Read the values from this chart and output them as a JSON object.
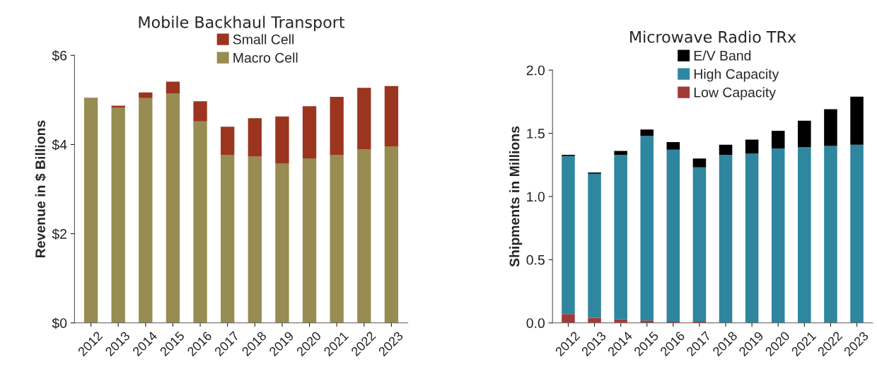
{
  "chart_data": [
    {
      "type": "bar",
      "title": "Mobile Backhaul Transport",
      "ylabel": "Revenue in $ Billions",
      "stacked": true,
      "legend": "top",
      "grid": false,
      "categories": [
        "2012",
        "2013",
        "2014",
        "2015",
        "2016",
        "2017",
        "2018",
        "2019",
        "2020",
        "2021",
        "2022",
        "2023"
      ],
      "series": [
        {
          "name": "Macro Cell",
          "color": "#978c52",
          "values": [
            5.04,
            4.83,
            5.04,
            5.14,
            4.52,
            3.76,
            3.73,
            3.58,
            3.69,
            3.76,
            3.89,
            3.96
          ]
        },
        {
          "name": "Small Cell",
          "color": "#9b3520",
          "values": [
            0.01,
            0.04,
            0.13,
            0.27,
            0.45,
            0.64,
            0.86,
            1.05,
            1.17,
            1.31,
            1.38,
            1.35
          ]
        }
      ],
      "ylim": [
        0,
        6
      ],
      "yticks": [
        {
          "value": 0,
          "label": "$0"
        },
        {
          "value": 2,
          "label": "$2"
        },
        {
          "value": 4,
          "label": "$4"
        },
        {
          "value": 6,
          "label": "$6"
        }
      ]
    },
    {
      "type": "bar",
      "title": "Microwave Radio TRx",
      "ylabel": "Shipments in Millions",
      "stacked": true,
      "legend": "top",
      "grid": false,
      "categories": [
        "2012",
        "2013",
        "2014",
        "2015",
        "2016",
        "2017",
        "2018",
        "2019",
        "2020",
        "2021",
        "2022",
        "2023"
      ],
      "series": [
        {
          "name": "Low Capacity",
          "color": "#a33a3a",
          "values": [
            0.07,
            0.04,
            0.03,
            0.02,
            0.01,
            0.01,
            0,
            0,
            0,
            0,
            0,
            0
          ]
        },
        {
          "name": "High Capacity",
          "color": "#2e869f",
          "values": [
            1.25,
            1.14,
            1.3,
            1.46,
            1.36,
            1.22,
            1.33,
            1.34,
            1.38,
            1.39,
            1.4,
            1.41
          ]
        },
        {
          "name": "E/V Band",
          "color": "#000000",
          "values": [
            0.01,
            0.01,
            0.03,
            0.05,
            0.06,
            0.07,
            0.08,
            0.11,
            0.14,
            0.21,
            0.29,
            0.38
          ]
        }
      ],
      "ylim": [
        0,
        2
      ],
      "yticks": [
        {
          "value": 0,
          "label": "0.0"
        },
        {
          "value": 0.5,
          "label": "0.5"
        },
        {
          "value": 1,
          "label": "1.0"
        },
        {
          "value": 1.5,
          "label": "1.5"
        },
        {
          "value": 2,
          "label": "2.0"
        }
      ]
    }
  ]
}
